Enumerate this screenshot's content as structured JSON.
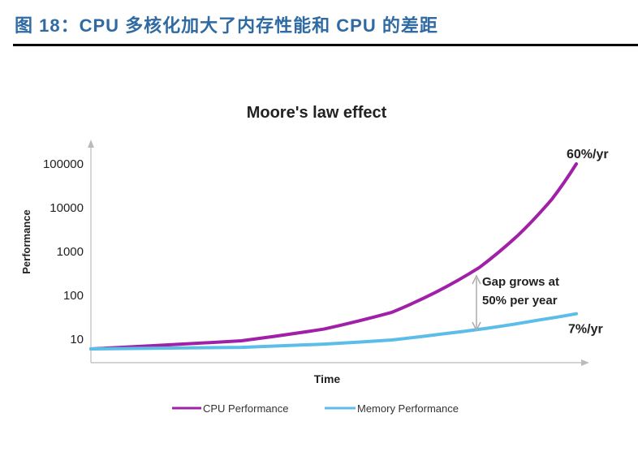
{
  "figure_title": "图 18：CPU 多核化加大了内存性能和 CPU 的差距",
  "chart_data": {
    "type": "line",
    "title": "Moore's law effect",
    "xlabel": "Time",
    "ylabel": "Performance",
    "y_scale": "log",
    "ylim": [
      5,
      100000
    ],
    "y_ticks": [
      "10",
      "100",
      "1000",
      "10000",
      "100000"
    ],
    "x_ticks": [],
    "grid": false,
    "legend_position": "bottom",
    "series": [
      {
        "name": "CPU Performance",
        "color": "#a020a8",
        "t": [
          0,
          31,
          48,
          62,
          71,
          80,
          88,
          95,
          100
        ],
        "values": [
          6,
          9.2,
          17,
          41,
          117,
          430,
          2350,
          15800,
          100000
        ],
        "end_label": "60%/yr"
      },
      {
        "name": "Memory Performance",
        "color": "#5bbde8",
        "t": [
          0,
          31,
          48,
          62,
          72,
          82,
          92,
          100
        ],
        "values": [
          6,
          6.5,
          7.7,
          9.6,
          13,
          18,
          27,
          38
        ],
        "end_label": "7%/yr"
      }
    ],
    "annotation": {
      "line1": "Gap grows at",
      "line2": "50% per year"
    }
  }
}
